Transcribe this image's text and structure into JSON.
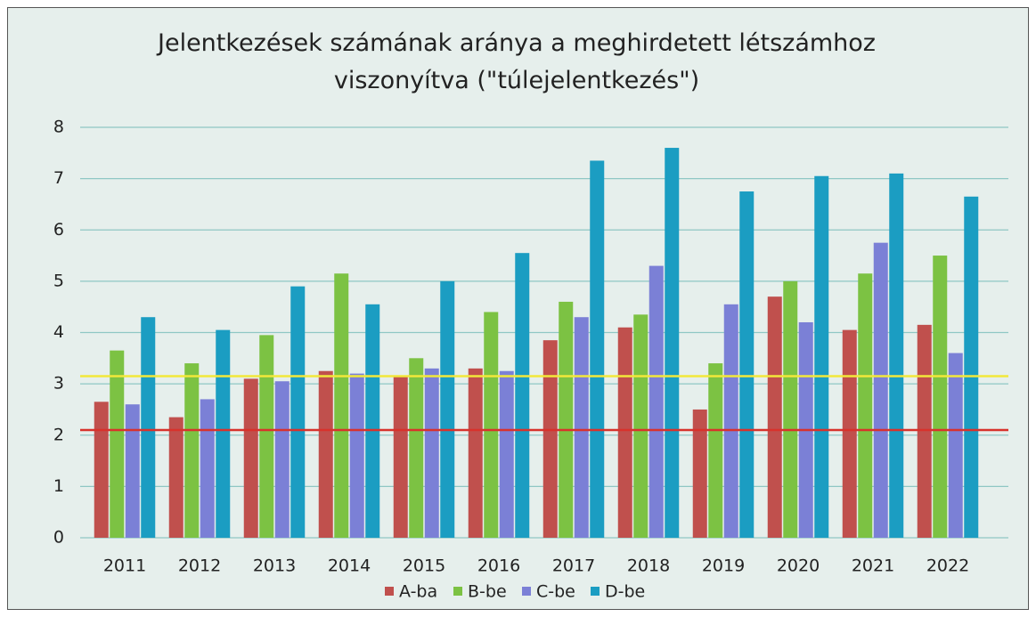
{
  "chart_data": {
    "type": "bar",
    "title": "Jelentkezések számának aránya a meghirdetett létszámhoz viszonyítva (\"túlejelentkezés\")",
    "categories": [
      "2011",
      "2012",
      "2013",
      "2014",
      "2015",
      "2016",
      "2017",
      "2018",
      "2019",
      "2020",
      "2021",
      "2022"
    ],
    "series": [
      {
        "name": "A-ba",
        "color": "#c0504d",
        "values": [
          2.65,
          2.35,
          3.1,
          3.25,
          3.15,
          3.3,
          3.85,
          4.1,
          2.5,
          4.7,
          4.05,
          4.15
        ]
      },
      {
        "name": "B-be",
        "color": "#7cc243",
        "values": [
          3.65,
          3.4,
          3.95,
          5.15,
          3.5,
          4.4,
          4.6,
          4.35,
          3.4,
          5.0,
          5.15,
          5.5
        ]
      },
      {
        "name": "C-be",
        "color": "#7b80d6",
        "values": [
          2.6,
          2.7,
          3.05,
          3.2,
          3.3,
          3.25,
          4.3,
          5.3,
          4.55,
          4.2,
          5.75,
          3.6
        ]
      },
      {
        "name": "D-be",
        "color": "#1b9dc2",
        "values": [
          4.3,
          4.05,
          4.9,
          4.55,
          5.0,
          5.55,
          7.35,
          7.6,
          6.75,
          7.05,
          7.1,
          6.65
        ]
      }
    ],
    "ylim": [
      0,
      8
    ],
    "yticks": [
      0,
      1,
      2,
      3,
      4,
      5,
      6,
      7,
      8
    ],
    "grid": true,
    "reference_lines": [
      {
        "value": 3.15,
        "color": "#f2e83a"
      },
      {
        "value": 2.1,
        "color": "#d8322c"
      }
    ],
    "legend": "bottom"
  }
}
